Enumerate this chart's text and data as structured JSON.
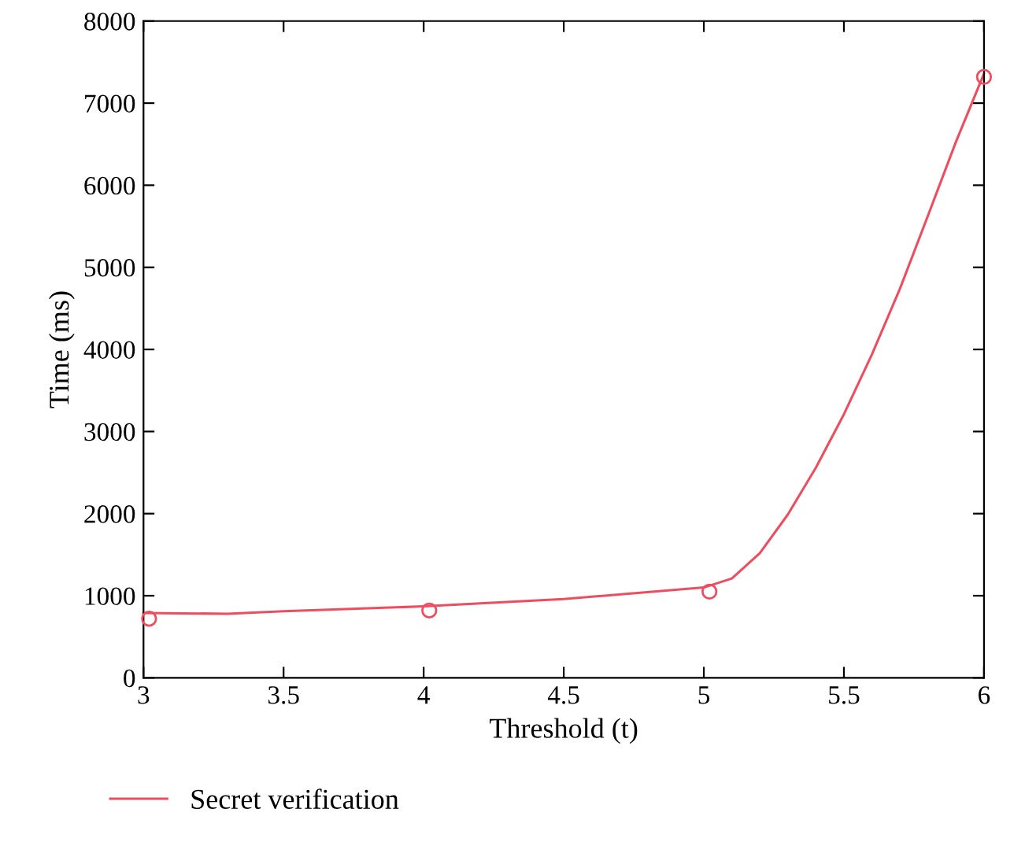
{
  "chart_data": {
    "type": "line",
    "xlabel": "Threshold (t)",
    "ylabel": "Time (ms)",
    "xlim": [
      3,
      6
    ],
    "ylim": [
      0,
      8000
    ],
    "xticks": [
      3,
      3.5,
      4,
      4.5,
      5,
      5.5,
      6
    ],
    "yticks": [
      0,
      1000,
      2000,
      3000,
      4000,
      5000,
      6000,
      7000,
      8000
    ],
    "grid": false,
    "legend": "bottom",
    "series": [
      {
        "name": "Secret verification",
        "color": "#ee4d5f",
        "marker": "none",
        "x": [
          3,
          3.3,
          3.5,
          4,
          4.5,
          5,
          5.1,
          5.2,
          5.3,
          5.4,
          5.5,
          5.6,
          5.7,
          5.8,
          5.9,
          6
        ],
        "values": [
          790,
          780,
          810,
          870,
          960,
          1100,
          1210,
          1520,
          1990,
          2560,
          3210,
          3940,
          4740,
          5630,
          6530,
          7360
        ]
      },
      {
        "type": "scatter",
        "color": "#ee4d5f",
        "marker": "circle",
        "x": [
          3.02,
          4.02,
          5.02,
          6
        ],
        "values": [
          720,
          820,
          1050,
          7320
        ]
      }
    ]
  }
}
